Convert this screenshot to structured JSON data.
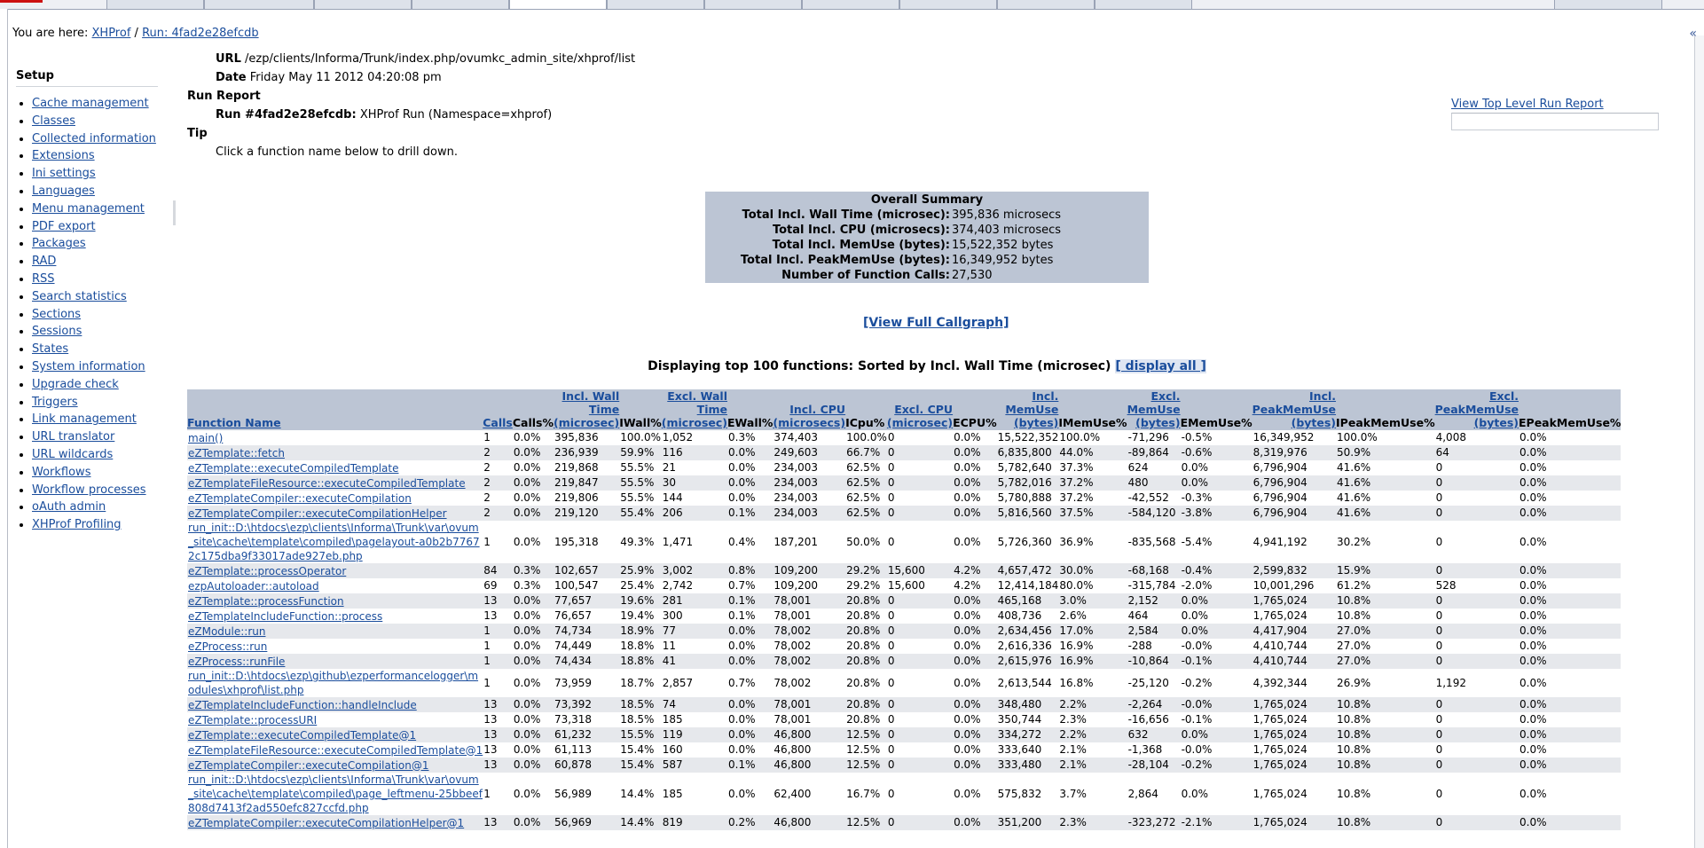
{
  "breadcrumb": {
    "prefix": "You are here:",
    "link1": "XHProf",
    "sep": "/",
    "link2": "Run: 4fad2e28efcdb"
  },
  "sidebar": {
    "title": "Setup",
    "items": [
      "Cache management",
      "Classes",
      "Collected information",
      "Extensions",
      "Ini settings",
      "Languages",
      "Menu management",
      "PDF export",
      "Packages",
      "RAD",
      "RSS",
      "Search statistics",
      "Sections",
      "Sessions",
      "States",
      "System information",
      "Upgrade check",
      "Triggers",
      "Link management",
      "URL translator",
      "URL wildcards",
      "Workflows",
      "Workflow processes",
      "oAuth admin",
      "XHProf Profiling"
    ]
  },
  "runinfo": {
    "url_label": "URL",
    "url_value": "/ezp/clients/Informa/Trunk/index.php/ovumkc_admin_site/xhprof/list",
    "date_label": "Date",
    "date_value": "Friday May 11 2012 04:20:08 pm",
    "report_label": "Run Report",
    "run_label": "Run #4fad2e28efcdb:",
    "run_value": "XHProf Run (Namespace=xhprof)",
    "tip_label": "Tip",
    "tip_value": "Click a function name below to drill down."
  },
  "toplevel_link": "View Top Level Run Report",
  "summary": {
    "title": "Overall Summary",
    "rows": [
      {
        "k": "Total Incl. Wall Time (microsec):",
        "v": "395,836 microsecs"
      },
      {
        "k": "Total Incl. CPU (microsecs):",
        "v": "374,403 microsecs"
      },
      {
        "k": "Total Incl. MemUse (bytes):",
        "v": "15,522,352 bytes"
      },
      {
        "k": "Total Incl. PeakMemUse (bytes):",
        "v": "16,349,952 bytes"
      },
      {
        "k": "Number of Function Calls:",
        "v": "27,530"
      }
    ]
  },
  "callgraph_link": "[View Full Callgraph]",
  "displaying": {
    "text": "Displaying top 100 functions: Sorted by Incl. Wall Time (microsec)",
    "link": "[ display all ]"
  },
  "table": {
    "headers": [
      {
        "text": "Function Name",
        "link": true,
        "align": "left"
      },
      {
        "text": "Calls",
        "link": true
      },
      {
        "text": "Calls%",
        "link": false
      },
      {
        "text": "Incl. Wall Time (microsec)",
        "link": true
      },
      {
        "text": "IWall%",
        "link": false
      },
      {
        "text": "Excl. Wall Time (microsec)",
        "link": true
      },
      {
        "text": "EWall%",
        "link": false
      },
      {
        "text": "Incl. CPU (microsecs)",
        "link": true
      },
      {
        "text": "ICpu%",
        "link": false
      },
      {
        "text": "Excl. CPU (microsec)",
        "link": true
      },
      {
        "text": "ECPU%",
        "link": false
      },
      {
        "text": "Incl. MemUse (bytes)",
        "link": true
      },
      {
        "text": "IMemUse%",
        "link": false
      },
      {
        "text": "Excl. MemUse (bytes)",
        "link": true
      },
      {
        "text": "EMemUse%",
        "link": false
      },
      {
        "text": "Incl. PeakMemUse (bytes)",
        "link": true
      },
      {
        "text": "IPeakMemUse%",
        "link": false
      },
      {
        "text": "Excl. PeakMemUse (bytes)",
        "link": true
      },
      {
        "text": "EPeakMemUse%",
        "link": false
      }
    ],
    "rows": [
      [
        "main()",
        "1",
        "0.0%",
        "395,836",
        "100.0%",
        "1,052",
        "0.3%",
        "374,403",
        "100.0%",
        "0",
        "0.0%",
        "15,522,352",
        "100.0%",
        "-71,296",
        "-0.5%",
        "16,349,952",
        "100.0%",
        "4,008",
        "0.0%"
      ],
      [
        "eZTemplate::fetch",
        "2",
        "0.0%",
        "236,939",
        "59.9%",
        "116",
        "0.0%",
        "249,603",
        "66.7%",
        "0",
        "0.0%",
        "6,835,800",
        "44.0%",
        "-89,864",
        "-0.6%",
        "8,319,976",
        "50.9%",
        "64",
        "0.0%"
      ],
      [
        "eZTemplate::executeCompiledTemplate",
        "2",
        "0.0%",
        "219,868",
        "55.5%",
        "21",
        "0.0%",
        "234,003",
        "62.5%",
        "0",
        "0.0%",
        "5,782,640",
        "37.3%",
        "624",
        "0.0%",
        "6,796,904",
        "41.6%",
        "0",
        "0.0%"
      ],
      [
        "eZTemplateFileResource::executeCompiledTemplate",
        "2",
        "0.0%",
        "219,847",
        "55.5%",
        "30",
        "0.0%",
        "234,003",
        "62.5%",
        "0",
        "0.0%",
        "5,782,016",
        "37.2%",
        "480",
        "0.0%",
        "6,796,904",
        "41.6%",
        "0",
        "0.0%"
      ],
      [
        "eZTemplateCompiler::executeCompilation",
        "2",
        "0.0%",
        "219,806",
        "55.5%",
        "144",
        "0.0%",
        "234,003",
        "62.5%",
        "0",
        "0.0%",
        "5,780,888",
        "37.2%",
        "-42,552",
        "-0.3%",
        "6,796,904",
        "41.6%",
        "0",
        "0.0%"
      ],
      [
        "eZTemplateCompiler::executeCompilationHelper",
        "2",
        "0.0%",
        "219,120",
        "55.4%",
        "206",
        "0.1%",
        "234,003",
        "62.5%",
        "0",
        "0.0%",
        "5,816,560",
        "37.5%",
        "-584,120",
        "-3.8%",
        "6,796,904",
        "41.6%",
        "0",
        "0.0%"
      ],
      [
        "run_init::D:\\htdocs\\ezp\\clients\\Informa\\Trunk\\var\\ovum_site\\cache\\template\\compiled\\pagelayout-a0b2b77672c175dba9f33017ade927eb.php",
        "1",
        "0.0%",
        "195,318",
        "49.3%",
        "1,471",
        "0.4%",
        "187,201",
        "50.0%",
        "0",
        "0.0%",
        "5,726,360",
        "36.9%",
        "-835,568",
        "-5.4%",
        "4,941,192",
        "30.2%",
        "0",
        "0.0%"
      ],
      [
        "eZTemplate::processOperator",
        "84",
        "0.3%",
        "102,657",
        "25.9%",
        "3,002",
        "0.8%",
        "109,200",
        "29.2%",
        "15,600",
        "4.2%",
        "4,657,472",
        "30.0%",
        "-68,168",
        "-0.4%",
        "2,599,832",
        "15.9%",
        "0",
        "0.0%"
      ],
      [
        "ezpAutoloader::autoload",
        "69",
        "0.3%",
        "100,547",
        "25.4%",
        "2,742",
        "0.7%",
        "109,200",
        "29.2%",
        "15,600",
        "4.2%",
        "12,414,184",
        "80.0%",
        "-315,784",
        "-2.0%",
        "10,001,296",
        "61.2%",
        "528",
        "0.0%"
      ],
      [
        "eZTemplate::processFunction",
        "13",
        "0.0%",
        "77,657",
        "19.6%",
        "281",
        "0.1%",
        "78,001",
        "20.8%",
        "0",
        "0.0%",
        "465,168",
        "3.0%",
        "2,152",
        "0.0%",
        "1,765,024",
        "10.8%",
        "0",
        "0.0%"
      ],
      [
        "eZTemplateIncludeFunction::process",
        "13",
        "0.0%",
        "76,657",
        "19.4%",
        "300",
        "0.1%",
        "78,001",
        "20.8%",
        "0",
        "0.0%",
        "408,736",
        "2.6%",
        "464",
        "0.0%",
        "1,765,024",
        "10.8%",
        "0",
        "0.0%"
      ],
      [
        "eZModule::run",
        "1",
        "0.0%",
        "74,734",
        "18.9%",
        "77",
        "0.0%",
        "78,002",
        "20.8%",
        "0",
        "0.0%",
        "2,634,456",
        "17.0%",
        "2,584",
        "0.0%",
        "4,417,904",
        "27.0%",
        "0",
        "0.0%"
      ],
      [
        "eZProcess::run",
        "1",
        "0.0%",
        "74,449",
        "18.8%",
        "11",
        "0.0%",
        "78,002",
        "20.8%",
        "0",
        "0.0%",
        "2,616,336",
        "16.9%",
        "-288",
        "-0.0%",
        "4,410,744",
        "27.0%",
        "0",
        "0.0%"
      ],
      [
        "eZProcess::runFile",
        "1",
        "0.0%",
        "74,434",
        "18.8%",
        "41",
        "0.0%",
        "78,002",
        "20.8%",
        "0",
        "0.0%",
        "2,615,976",
        "16.9%",
        "-10,864",
        "-0.1%",
        "4,410,744",
        "27.0%",
        "0",
        "0.0%"
      ],
      [
        "run_init::D:\\htdocs\\ezp\\github\\ezperformancelogger\\modules\\xhprof\\list.php",
        "1",
        "0.0%",
        "73,959",
        "18.7%",
        "2,857",
        "0.7%",
        "78,002",
        "20.8%",
        "0",
        "0.0%",
        "2,613,544",
        "16.8%",
        "-25,120",
        "-0.2%",
        "4,392,344",
        "26.9%",
        "1,192",
        "0.0%"
      ],
      [
        "eZTemplateIncludeFunction::handleInclude",
        "13",
        "0.0%",
        "73,392",
        "18.5%",
        "74",
        "0.0%",
        "78,001",
        "20.8%",
        "0",
        "0.0%",
        "348,480",
        "2.2%",
        "-2,264",
        "-0.0%",
        "1,765,024",
        "10.8%",
        "0",
        "0.0%"
      ],
      [
        "eZTemplate::processURI",
        "13",
        "0.0%",
        "73,318",
        "18.5%",
        "185",
        "0.0%",
        "78,001",
        "20.8%",
        "0",
        "0.0%",
        "350,744",
        "2.3%",
        "-16,656",
        "-0.1%",
        "1,765,024",
        "10.8%",
        "0",
        "0.0%"
      ],
      [
        "eZTemplate::executeCompiledTemplate@1",
        "13",
        "0.0%",
        "61,232",
        "15.5%",
        "119",
        "0.0%",
        "46,800",
        "12.5%",
        "0",
        "0.0%",
        "334,272",
        "2.2%",
        "632",
        "0.0%",
        "1,765,024",
        "10.8%",
        "0",
        "0.0%"
      ],
      [
        "eZTemplateFileResource::executeCompiledTemplate@1",
        "13",
        "0.0%",
        "61,113",
        "15.4%",
        "160",
        "0.0%",
        "46,800",
        "12.5%",
        "0",
        "0.0%",
        "333,640",
        "2.1%",
        "-1,368",
        "-0.0%",
        "1,765,024",
        "10.8%",
        "0",
        "0.0%"
      ],
      [
        "eZTemplateCompiler::executeCompilation@1",
        "13",
        "0.0%",
        "60,878",
        "15.4%",
        "587",
        "0.1%",
        "46,800",
        "12.5%",
        "0",
        "0.0%",
        "333,480",
        "2.1%",
        "-28,104",
        "-0.2%",
        "1,765,024",
        "10.8%",
        "0",
        "0.0%"
      ],
      [
        "run_init::D:\\htdocs\\ezp\\clients\\Informa\\Trunk\\var\\ovum_site\\cache\\template\\compiled\\page_leftmenu-25bbeef808d7413f2ad550efc827ccfd.php",
        "1",
        "0.0%",
        "56,989",
        "14.4%",
        "185",
        "0.0%",
        "62,400",
        "16.7%",
        "0",
        "0.0%",
        "575,832",
        "3.7%",
        "2,864",
        "0.0%",
        "1,765,024",
        "10.8%",
        "0",
        "0.0%"
      ],
      [
        "eZTemplateCompiler::executeCompilationHelper@1",
        "13",
        "0.0%",
        "56,969",
        "14.4%",
        "819",
        "0.2%",
        "46,800",
        "12.5%",
        "0",
        "0.0%",
        "351,200",
        "2.3%",
        "-323,272",
        "-2.1%",
        "1,765,024",
        "10.8%",
        "0",
        "0.0%"
      ]
    ]
  }
}
